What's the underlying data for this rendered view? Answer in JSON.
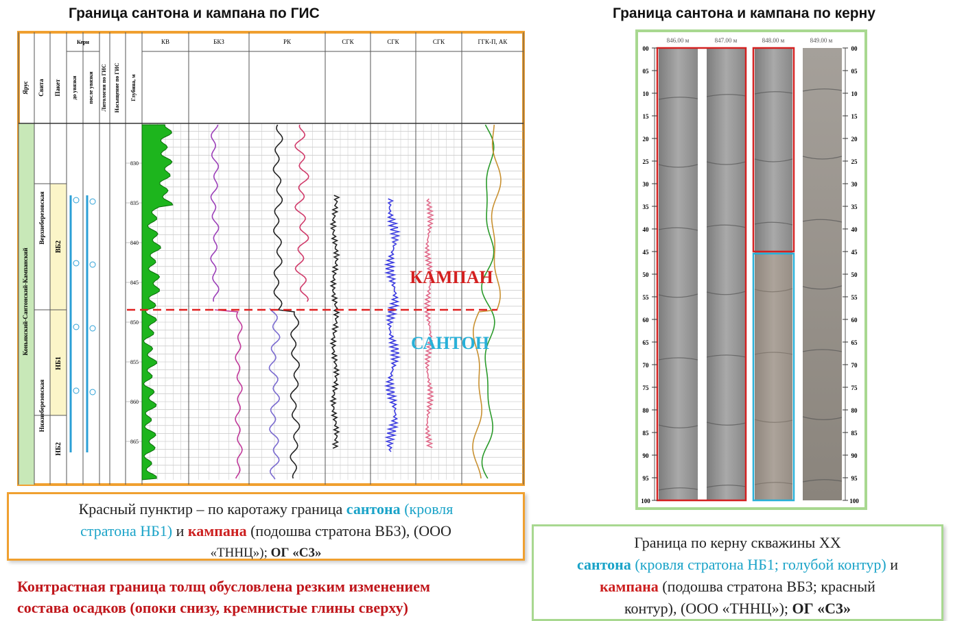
{
  "left_panel": {
    "title": "Граница сантона и кампана по ГИС",
    "headers": {
      "stage": "Ярус",
      "suite": "Свита",
      "pack": "Пакет",
      "core": "Керн",
      "core_before": "до увязки",
      "core_after": "после увязки",
      "lithology": "Литология по ГИС",
      "saturation": "Насыщение по ГИС",
      "depth": "Глубина, м"
    },
    "log_columns": [
      "КВ",
      "БКЗ",
      "РК",
      "СГК",
      "СГК",
      "СГК",
      "ГГК-П, АК"
    ],
    "strata": {
      "stage": "Коньякский-Сантонский-Кампанский",
      "suite_upper": "Верхнеберезовская",
      "suite_lower": "Нижнеберезовская",
      "packs": [
        "ВБ2",
        "НБ1",
        "НБ2"
      ]
    },
    "depth_ticks": [
      830,
      835,
      840,
      845,
      850,
      855,
      860,
      865
    ],
    "campan_label": "КАМПАН",
    "santon_label": "САНТОН"
  },
  "left_caption": {
    "lines": [
      [
        "Красный пунктир – по каротажу граница ",
        "сантона",
        " (кровля"
      ],
      [
        "стратона НБ1)",
        " и ",
        "кампана",
        " (подошва стратона ВБ3), (ООО"
      ],
      [
        "«ТННЦ»);  ",
        "ОГ «С3»"
      ]
    ]
  },
  "conclusion": [
    "Контрастная граница толщ обусловлена резким изменением",
    "состава осадков (опоки снизу, кремнистые глины сверху)"
  ],
  "right_panel": {
    "title": "Граница сантона и кампана по керну",
    "core_depths": [
      "846.00 м",
      "847.00 м",
      "848.00 м",
      "849.00 м"
    ],
    "scale_ticks": [
      "00",
      "05",
      "10",
      "15",
      "20",
      "25",
      "30",
      "35",
      "40",
      "45",
      "50",
      "55",
      "60",
      "65",
      "70",
      "75",
      "80",
      "85",
      "90",
      "95",
      "100"
    ]
  },
  "right_caption": {
    "lines": [
      [
        "Граница по керну скважины ХХ"
      ],
      [
        "сантона",
        " (кровля стратона НБ1; голубой контур)",
        " и"
      ],
      [
        "кампана",
        " (подошва стратона ВБ3; красный"
      ],
      [
        "контур),  (ООО «ТННЦ»);  ",
        "ОГ «С3»"
      ]
    ]
  }
}
